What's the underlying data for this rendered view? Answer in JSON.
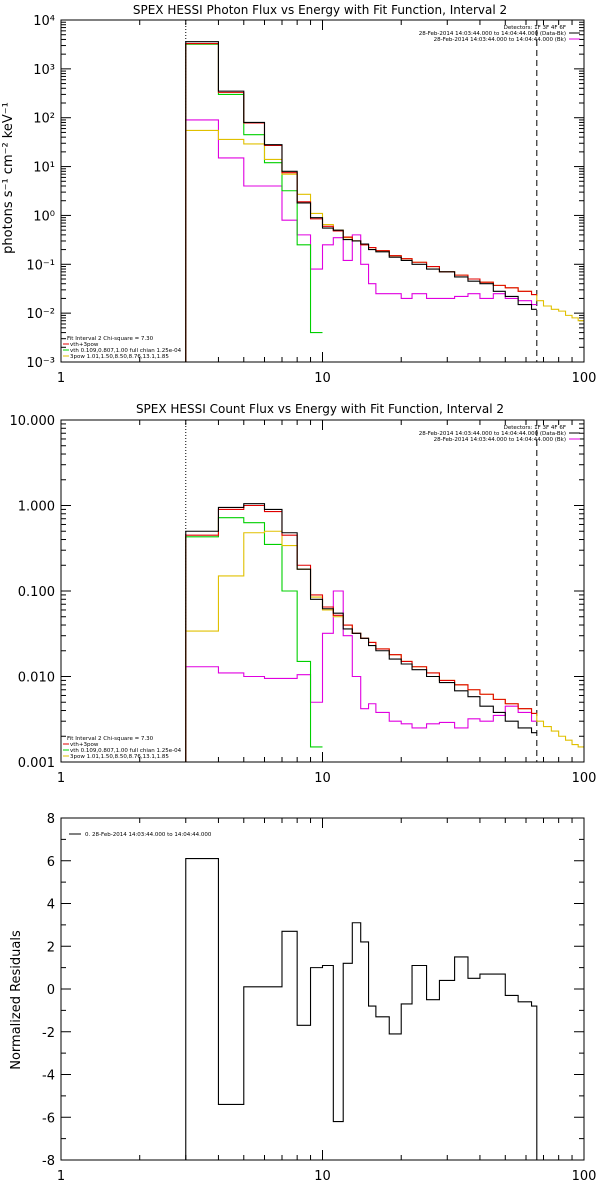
{
  "chart_data": [
    {
      "type": "line",
      "title": "SPEX HESSI Photon Flux vs Energy with Fit Function, Interval 2",
      "ylabel": "photons s⁻¹ cm⁻² keV⁻¹",
      "xlabel": "",
      "x_scale": "log",
      "y_scale": "log",
      "xlim": [
        1,
        100
      ],
      "ylim": [
        0.001,
        10000
      ],
      "xticks": [
        "1",
        "10",
        "100"
      ],
      "yticks": [
        "10⁻³",
        "10⁻²",
        "10⁻¹",
        "10⁰",
        "10¹",
        "10²",
        "10³",
        "10⁴"
      ],
      "vlines": [
        {
          "x": 3,
          "style": "dotted"
        },
        {
          "x": 66,
          "style": "dashed"
        }
      ],
      "legend_top": {
        "rows": [
          {
            "text": "Detectors: 1F 3F 4F 6F",
            "color": ""
          },
          {
            "text": "28-Feb-2014 14:03:44.000 to 14:04:44.000 (Data-Bk)",
            "color": "#000000"
          },
          {
            "text": "28-Feb-2014 14:03:44.000 to 14:04:44.000 (Bk)",
            "color": "#e000e0"
          }
        ]
      },
      "legend_bottom": {
        "rows": [
          {
            "text": "Fit Interval 2   Chi-square = 7.30",
            "color": ""
          },
          {
            "text": "vth+3pow",
            "color": "#e00000"
          },
          {
            "text": "vth 0.109,0.807,1.00  full chian 1.25e-04",
            "color": "#00d000"
          },
          {
            "text": "3pow 1.01,1.50,8.50,8.76,13.1,1.85",
            "color": "#e0c000"
          }
        ]
      },
      "series": [
        {
          "color": "#e000e0",
          "edges": [
            3,
            4,
            5,
            6,
            7,
            8,
            9,
            10,
            11,
            12,
            13,
            14,
            15,
            16,
            18,
            20,
            22,
            25,
            28,
            32,
            36,
            40,
            45,
            50,
            56,
            63,
            66
          ],
          "values": [
            90,
            15,
            4,
            4,
            0.8,
            0.4,
            0.08,
            0.25,
            0.35,
            0.12,
            0.4,
            0.1,
            0.04,
            0.025,
            0.025,
            0.02,
            0.025,
            0.02,
            0.02,
            0.022,
            0.025,
            0.02,
            0.025,
            0.02,
            0.018,
            0.015
          ]
        },
        {
          "color": "#00d000",
          "edges": [
            3,
            4,
            5,
            6,
            7,
            8,
            9,
            10
          ],
          "values": [
            3200,
            300,
            45,
            12,
            3.2,
            0.25,
            0.004
          ]
        },
        {
          "color": "#e0c000",
          "edges": [
            3,
            4,
            5,
            6,
            7,
            8,
            9,
            10,
            11,
            12,
            13,
            14,
            15,
            16,
            18,
            20,
            22,
            25,
            28,
            32,
            36,
            40,
            45,
            50,
            56,
            63,
            66,
            70,
            75,
            80,
            85,
            90,
            95,
            100
          ],
          "values": [
            55,
            36,
            29,
            14,
            7,
            2.7,
            1.1,
            0.65,
            0.5,
            0.35,
            0.3,
            0.25,
            0.22,
            0.19,
            0.15,
            0.13,
            0.11,
            0.09,
            0.07,
            0.06,
            0.05,
            0.043,
            0.037,
            0.033,
            0.028,
            0.024,
            0.018,
            0.014,
            0.012,
            0.011,
            0.009,
            0.008,
            0.007
          ]
        },
        {
          "color": "#e00000",
          "edges": [
            3,
            4,
            5,
            6,
            7,
            8,
            9,
            10,
            11,
            12,
            13,
            14,
            15,
            16,
            18,
            20,
            22,
            25,
            28,
            32,
            36,
            40,
            45,
            50,
            56,
            63,
            66
          ],
          "values": [
            3300,
            330,
            78,
            27,
            7.5,
            1.9,
            0.85,
            0.6,
            0.48,
            0.36,
            0.3,
            0.25,
            0.22,
            0.19,
            0.15,
            0.13,
            0.11,
            0.09,
            0.07,
            0.06,
            0.05,
            0.043,
            0.037,
            0.033,
            0.028,
            0.024
          ]
        },
        {
          "color": "#000000",
          "edges": [
            3,
            4,
            5,
            6,
            7,
            8,
            9,
            10,
            11,
            12,
            13,
            14,
            15,
            16,
            18,
            20,
            22,
            25,
            28,
            32,
            36,
            40,
            45,
            50,
            56,
            63,
            66
          ],
          "values": [
            3600,
            350,
            80,
            28,
            8,
            1.8,
            0.9,
            0.55,
            0.5,
            0.32,
            0.3,
            0.26,
            0.2,
            0.18,
            0.14,
            0.12,
            0.1,
            0.08,
            0.07,
            0.055,
            0.045,
            0.04,
            0.028,
            0.022,
            0.015,
            0.012
          ]
        }
      ]
    },
    {
      "type": "line",
      "title": "SPEX HESSI Count Flux vs Energy with Fit Function, Interval 2",
      "ylabel": "",
      "xlabel": "",
      "x_scale": "log",
      "y_scale": "log",
      "xlim": [
        1,
        100
      ],
      "ylim": [
        0.001,
        10
      ],
      "xticks": [
        "1",
        "10",
        "100"
      ],
      "yticks": [
        "0.001",
        "0.010",
        "0.100",
        "1.000",
        "10.000"
      ],
      "vlines": [
        {
          "x": 3,
          "style": "dotted"
        },
        {
          "x": 66,
          "style": "dashed"
        }
      ],
      "legend_top": {
        "rows": [
          {
            "text": "Detectors: 1F 3F 4F 6F",
            "color": ""
          },
          {
            "text": "28-Feb-2014 14:03:44.000 to 14:04:44.000 (Data-Bk)",
            "color": "#000000"
          },
          {
            "text": "28-Feb-2014 14:03:44.000 to 14:04:44.000 (Bk)",
            "color": "#e000e0"
          }
        ]
      },
      "legend_bottom": {
        "rows": [
          {
            "text": "Fit Interval 2   Chi-square = 7.30",
            "color": ""
          },
          {
            "text": "vth+3pow",
            "color": "#e00000"
          },
          {
            "text": "vth 0.109,0.807,1.00  full chian 1.25e-04",
            "color": "#00d000"
          },
          {
            "text": "3pow 1.01,1.50,8.50,8.76,13.1,1.85",
            "color": "#e0c000"
          }
        ]
      },
      "series": [
        {
          "color": "#e000e0",
          "edges": [
            3,
            4,
            5,
            6,
            7,
            8,
            9,
            10,
            11,
            12,
            13,
            14,
            15,
            16,
            18,
            20,
            22,
            25,
            28,
            32,
            36,
            40,
            45,
            50,
            56,
            63,
            66
          ],
          "values": [
            0.013,
            0.011,
            0.01,
            0.0095,
            0.0095,
            0.0105,
            0.005,
            0.032,
            0.1,
            0.03,
            0.01,
            0.0042,
            0.0048,
            0.0038,
            0.003,
            0.0028,
            0.0025,
            0.0028,
            0.0029,
            0.0025,
            0.0032,
            0.003,
            0.0035,
            0.0045,
            0.0038,
            0.003
          ]
        },
        {
          "color": "#00d000",
          "edges": [
            3,
            4,
            5,
            6,
            7,
            8,
            9,
            10
          ],
          "values": [
            0.43,
            0.72,
            0.63,
            0.35,
            0.1,
            0.015,
            0.0015
          ]
        },
        {
          "color": "#e0c000",
          "edges": [
            3,
            4,
            5,
            6,
            7,
            8,
            9,
            10,
            11,
            12,
            13,
            14,
            15,
            16,
            18,
            20,
            22,
            25,
            28,
            32,
            36,
            40,
            45,
            50,
            56,
            63,
            66,
            70,
            75,
            80,
            85,
            90,
            95,
            100
          ],
          "values": [
            0.034,
            0.15,
            0.48,
            0.5,
            0.34,
            0.18,
            0.085,
            0.06,
            0.05,
            0.04,
            0.032,
            0.028,
            0.025,
            0.021,
            0.018,
            0.015,
            0.013,
            0.011,
            0.009,
            0.008,
            0.007,
            0.0062,
            0.0054,
            0.0048,
            0.0042,
            0.0037,
            0.003,
            0.0026,
            0.0023,
            0.002,
            0.0018,
            0.0016,
            0.0015
          ]
        },
        {
          "color": "#e00000",
          "edges": [
            3,
            4,
            5,
            6,
            7,
            8,
            9,
            10,
            11,
            12,
            13,
            14,
            15,
            16,
            18,
            20,
            22,
            25,
            28,
            32,
            36,
            40,
            45,
            50,
            56,
            63,
            66
          ],
          "values": [
            0.45,
            0.9,
            1.0,
            0.85,
            0.45,
            0.2,
            0.09,
            0.065,
            0.052,
            0.04,
            0.032,
            0.028,
            0.025,
            0.021,
            0.018,
            0.015,
            0.013,
            0.011,
            0.009,
            0.008,
            0.007,
            0.0062,
            0.0054,
            0.0048,
            0.0042,
            0.0037
          ]
        },
        {
          "color": "#000000",
          "edges": [
            3,
            4,
            5,
            6,
            7,
            8,
            9,
            10,
            11,
            12,
            13,
            14,
            15,
            16,
            18,
            20,
            22,
            25,
            28,
            32,
            36,
            40,
            45,
            50,
            56,
            63,
            66
          ],
          "values": [
            0.5,
            0.95,
            1.05,
            0.9,
            0.48,
            0.18,
            0.08,
            0.062,
            0.055,
            0.036,
            0.032,
            0.028,
            0.023,
            0.02,
            0.016,
            0.014,
            0.012,
            0.01,
            0.0085,
            0.0068,
            0.0058,
            0.0045,
            0.0038,
            0.003,
            0.0025,
            0.0022
          ]
        }
      ]
    },
    {
      "type": "line",
      "title": "",
      "ylabel": "Normalized Residuals",
      "xlabel": "",
      "x_scale": "log",
      "y_scale": "linear",
      "xlim": [
        1,
        100
      ],
      "ylim": [
        -8,
        8
      ],
      "xticks": [
        "1",
        "10",
        "100"
      ],
      "yticks": [
        "-8",
        "-6",
        "-4",
        "-2",
        "0",
        "2",
        "4",
        "6",
        "8"
      ],
      "vlines": [],
      "legend_top": {
        "rows": [
          {
            "text": "0. 28-Feb-2014 14:03:44.000 to 14:04:44.000",
            "color": "#000000"
          }
        ]
      },
      "legend_bottom": {
        "rows": []
      },
      "series": [
        {
          "color": "#000000",
          "baseline": -8,
          "edges": [
            3,
            4,
            5,
            6,
            7,
            8,
            9,
            10,
            11,
            12,
            13,
            14,
            15,
            16,
            18,
            20,
            22,
            25,
            28,
            32,
            36,
            40,
            45,
            50,
            56,
            63,
            66
          ],
          "values": [
            6.1,
            -5.4,
            0.1,
            0.1,
            2.7,
            -1.7,
            1.0,
            1.1,
            -6.2,
            1.2,
            3.1,
            2.2,
            -0.8,
            -1.3,
            -2.1,
            -0.7,
            1.1,
            -0.5,
            0.4,
            1.5,
            0.5,
            0.7,
            0.7,
            -0.3,
            -0.6,
            -0.8
          ]
        }
      ]
    }
  ]
}
